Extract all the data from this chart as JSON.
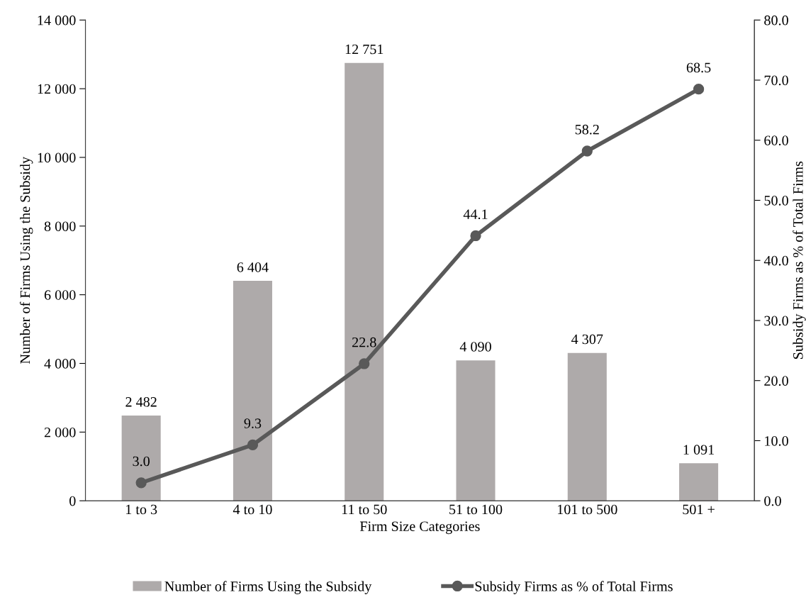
{
  "chart_data": {
    "type": "bar",
    "xlabel": "Firm Size Categories",
    "ylabel": "Number of Firms Using the Subsidy",
    "y2label": "Subsidy Firms as % of Total Firms",
    "categories": [
      "1 to 3",
      "4 to 10",
      "11 to 50",
      "51 to 100",
      "101 to 500",
      "501 +"
    ],
    "series": [
      {
        "name": "Number of Firms Using the Subsidy",
        "color": "#aeaaaa",
        "values": [
          2482,
          6404,
          12751,
          4090,
          4307,
          1091
        ],
        "value_labels": [
          "2 482",
          "6 404",
          "12 751",
          "4 090",
          "4 307",
          "1 091"
        ]
      },
      {
        "name": "Subsidy Firms as % of Total Firms",
        "type": "line",
        "axis": "y2",
        "color": "#595959",
        "marker": "circle",
        "line_style": "solid",
        "values": [
          3.0,
          9.3,
          22.8,
          44.1,
          58.2,
          68.5
        ],
        "value_labels": [
          "3.0",
          "9.3",
          "22.8",
          "44.1",
          "58.2",
          "68.5"
        ]
      }
    ],
    "ylim": [
      0,
      14000
    ],
    "yticks": [
      0,
      {
        "value": 2000,
        "label": "2 000"
      },
      {
        "value": 4000,
        "label": "4 000"
      },
      {
        "value": 6000,
        "label": "6 000"
      },
      {
        "value": 8000,
        "label": "8 000"
      },
      {
        "value": 10000,
        "label": "10 000"
      },
      {
        "value": 12000,
        "label": "12 000"
      },
      {
        "value": 14000,
        "label": "14 000"
      }
    ],
    "y2lim": [
      0,
      80
    ],
    "y2ticks": [
      {
        "value": 0,
        "label": "0.0"
      },
      {
        "value": 10,
        "label": "10.0"
      },
      {
        "value": 20,
        "label": "20.0"
      },
      {
        "value": 30,
        "label": "30.0"
      },
      {
        "value": 40,
        "label": "40.0"
      },
      {
        "value": 50,
        "label": "50.0"
      },
      {
        "value": 60,
        "label": "60.0"
      },
      {
        "value": 70,
        "label": "70.0"
      },
      {
        "value": 80,
        "label": "80.0"
      }
    ],
    "grid": false,
    "legend": "bottom"
  }
}
